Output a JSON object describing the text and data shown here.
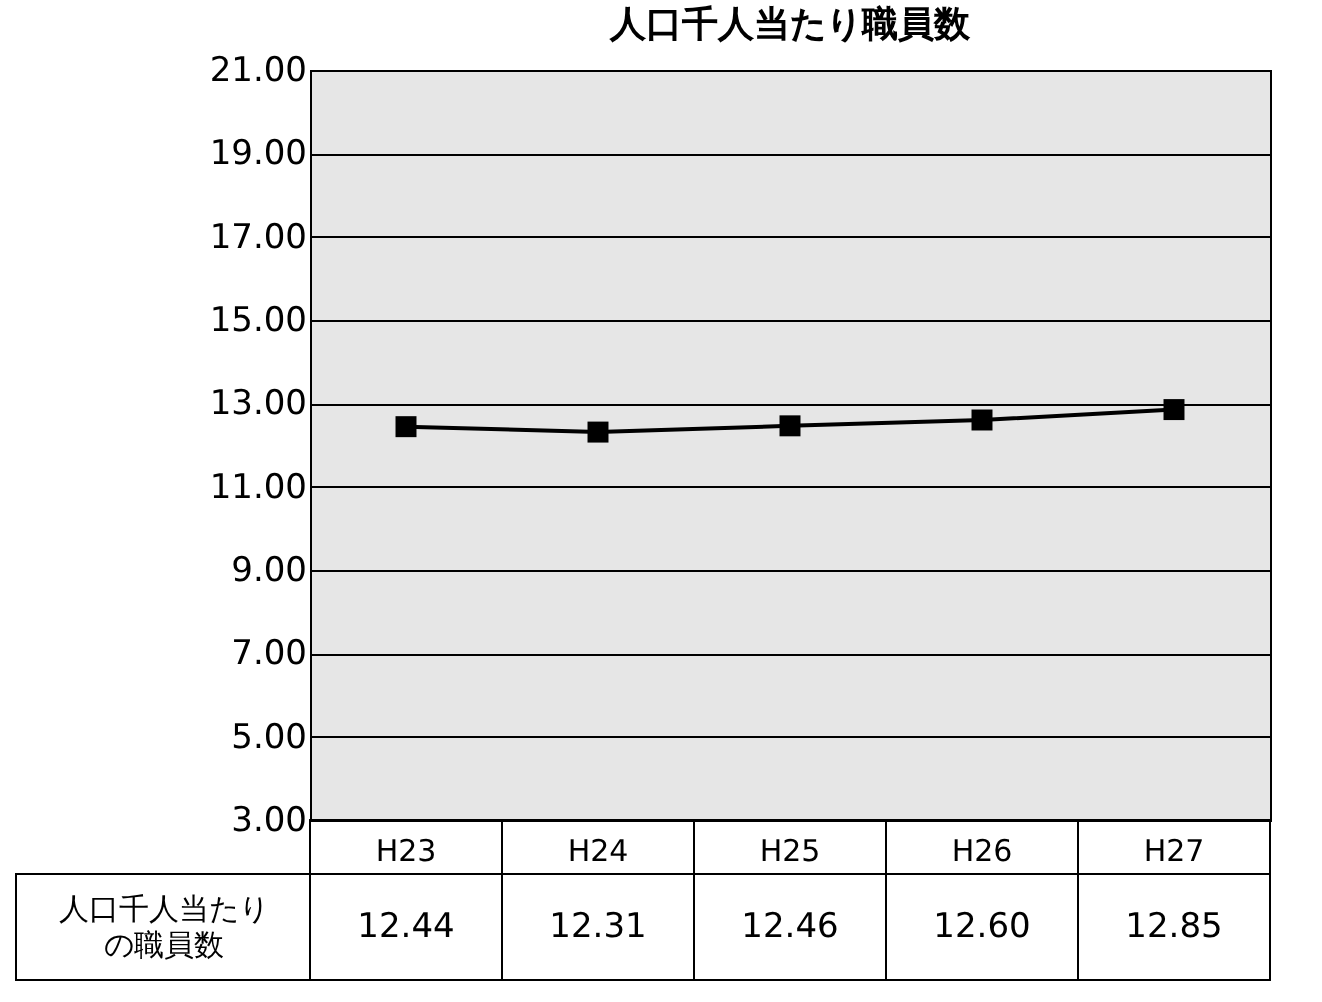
{
  "chart_data": {
    "type": "line",
    "title": "人口千人当たり職員数",
    "categories": [
      "H23",
      "H24",
      "H25",
      "H26",
      "H27"
    ],
    "series": [
      {
        "name": "人口千人当たりの職員数",
        "color": "#000000",
        "values": [
          12.44,
          12.31,
          12.46,
          12.6,
          12.85
        ],
        "value_labels": [
          "12.44",
          "12.31",
          "12.46",
          "12.60",
          "12.85"
        ]
      }
    ],
    "ylim": [
      3,
      21
    ],
    "yticks": [
      {
        "value": 3,
        "label": "3.00"
      },
      {
        "value": 5,
        "label": "5.00"
      },
      {
        "value": 7,
        "label": "7.00"
      },
      {
        "value": 9,
        "label": "9.00"
      },
      {
        "value": 11,
        "label": "11.00"
      },
      {
        "value": 13,
        "label": "13.00"
      },
      {
        "value": 15,
        "label": "15.00"
      },
      {
        "value": 17,
        "label": "17.00"
      },
      {
        "value": 19,
        "label": "19.00"
      },
      {
        "value": 21,
        "label": "21.00"
      }
    ],
    "grid": "y",
    "marker": "square"
  }
}
